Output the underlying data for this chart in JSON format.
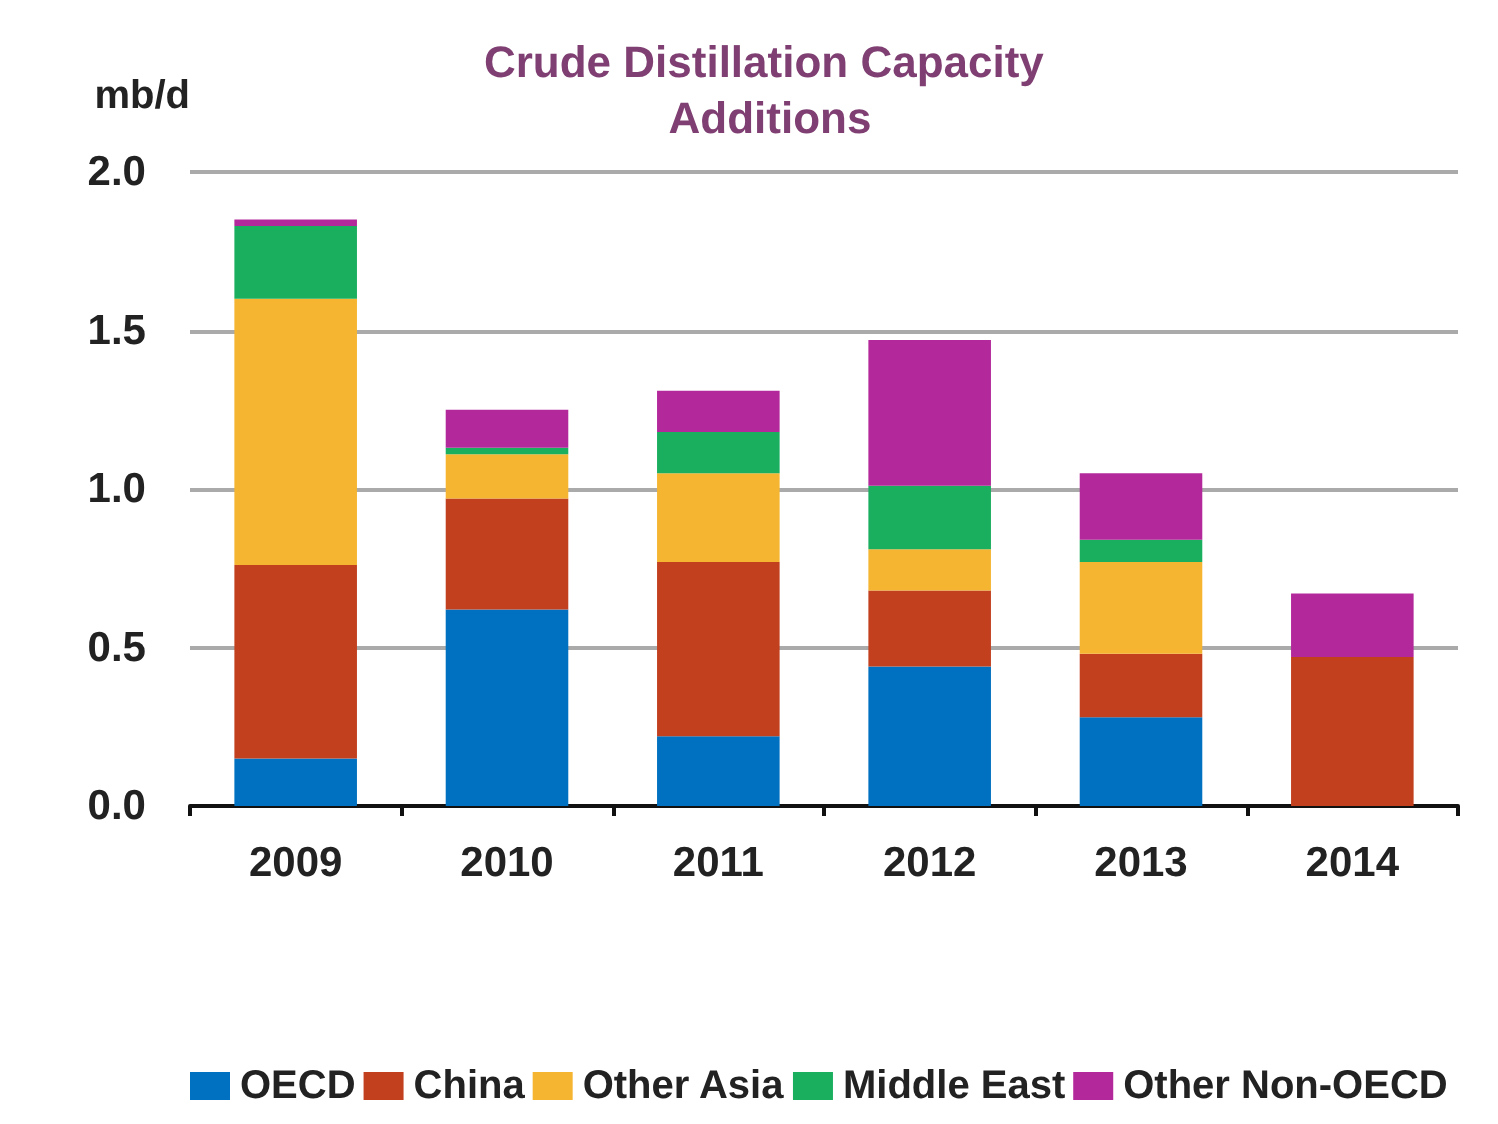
{
  "chart_data": {
    "type": "bar",
    "title": "Crude Distillation Capacity Additions",
    "ylabel": "mb/d",
    "stacked": true,
    "categories": [
      "2009",
      "2010",
      "2011",
      "2012",
      "2013",
      "2014"
    ],
    "series": [
      {
        "name": "OECD",
        "color": "#0070c0",
        "values": [
          0.15,
          0.62,
          0.22,
          0.44,
          0.28,
          0
        ]
      },
      {
        "name": "China",
        "color": "#c3401f",
        "values": [
          0.61,
          0.35,
          0.55,
          0.24,
          0.2,
          0.47
        ]
      },
      {
        "name": "Other Asia",
        "color": "#f6b530",
        "values": [
          0.84,
          0.14,
          0.28,
          0.13,
          0.29,
          0
        ]
      },
      {
        "name": "Middle East",
        "color": "#1aae5f",
        "values": [
          0.23,
          0.02,
          0.13,
          0.2,
          0.07,
          0
        ]
      },
      {
        "name": "Other Non-OECD",
        "color": "#b3289b",
        "values": [
          0.02,
          0.12,
          0.13,
          0.46,
          0.21,
          0.2
        ]
      }
    ],
    "ylim": [
      0,
      2
    ],
    "yticks": [
      {
        "value": 0,
        "label": "0.0"
      },
      {
        "value": 0.5,
        "label": "0.5"
      },
      {
        "value": 1,
        "label": "1.0"
      },
      {
        "value": 1.5,
        "label": "1.5"
      },
      {
        "value": 2,
        "label": "2.0"
      }
    ],
    "grid": "y",
    "legend": "bottom"
  }
}
